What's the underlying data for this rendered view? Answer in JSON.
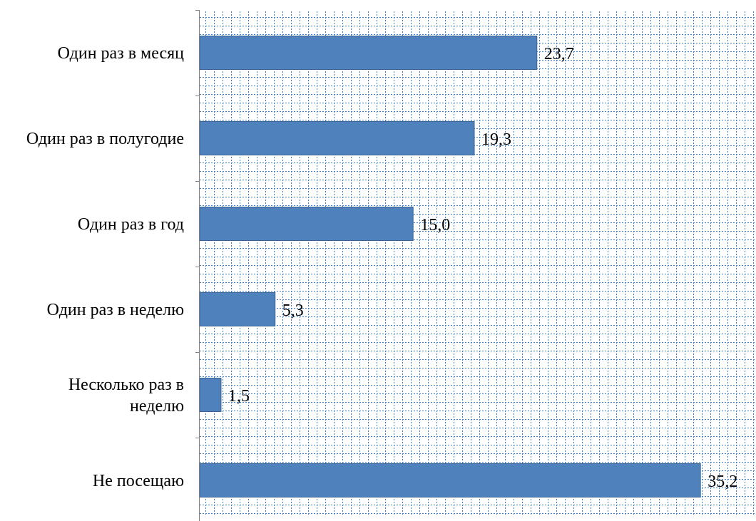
{
  "chart_data": {
    "type": "bar",
    "orientation": "horizontal",
    "categories": [
      [
        "Один раз в месяц"
      ],
      [
        "Один раз в полугодие"
      ],
      [
        "Один раз в год"
      ],
      [
        "Один раз в неделю"
      ],
      [
        "Несколько раз в",
        "неделю"
      ],
      [
        "Не посещаю"
      ]
    ],
    "values": [
      23.7,
      19.3,
      15.0,
      5.3,
      1.5,
      35.2
    ],
    "value_labels": [
      "23,7",
      "19,3",
      "15,0",
      "5,3",
      "1,5",
      "35,2"
    ],
    "title": "",
    "xlabel": "",
    "ylabel": "",
    "xlim": [
      0,
      39
    ],
    "grid": true,
    "legend": "none",
    "colors": {
      "bar": "#4F81BD",
      "bar_edge": "#3A6496",
      "grid_pattern": "#3F7FC0",
      "axis": "#808080",
      "text": "#000000"
    }
  }
}
